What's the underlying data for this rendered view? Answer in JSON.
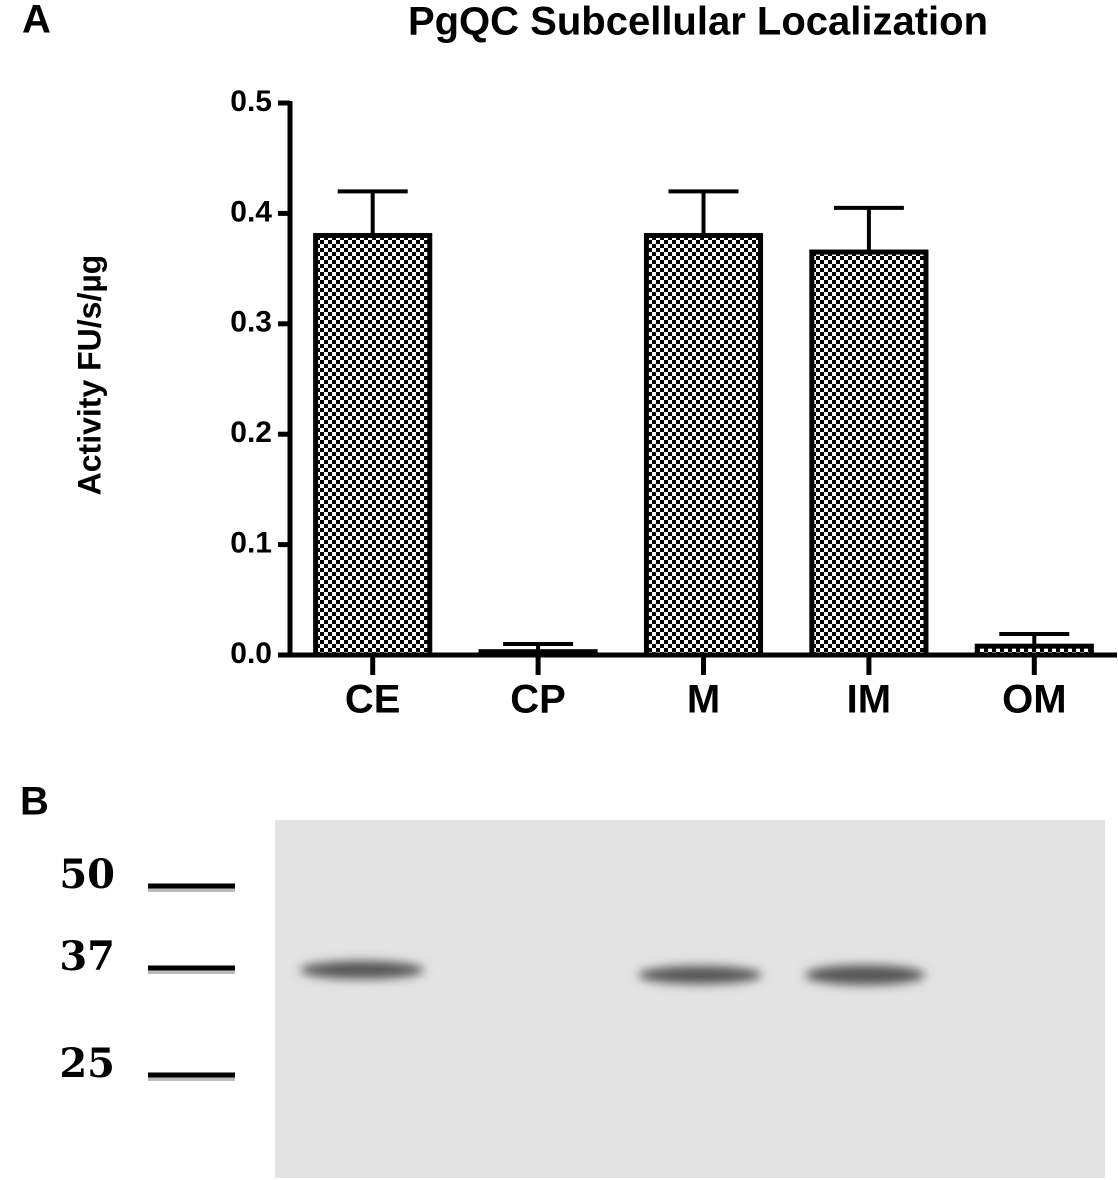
{
  "panel_labels": [
    "A",
    "B"
  ],
  "chart_data": {
    "type": "bar",
    "title": "PgQC Subcellular Localization",
    "y_label": "Activity FU/s/µg",
    "categories": [
      "CE",
      "CP",
      "M",
      "IM",
      "OM"
    ],
    "values": [
      0.38,
      0.003,
      0.38,
      0.365,
      0.008
    ],
    "errors": [
      0.04,
      0.007,
      0.04,
      0.04,
      0.011
    ],
    "color": "#000000",
    "ylim": [
      0,
      0.5
    ],
    "yticks": [
      {
        "value": 0,
        "label": "0.0"
      },
      0.1,
      0.2,
      0.3,
      0.4,
      0.5
    ],
    "grid": false
  },
  "blot": {
    "markers": [
      50,
      37,
      25
    ]
  }
}
